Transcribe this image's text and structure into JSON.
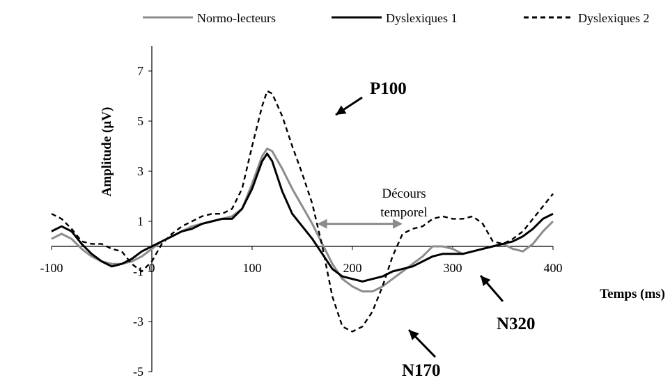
{
  "chart_data": {
    "type": "line",
    "title": "",
    "xlabel": "Temps (ms)",
    "ylabel": "Amplitude (µV)",
    "xlim": [
      -100,
      400
    ],
    "ylim": [
      -5,
      8
    ],
    "xticks": [
      -100,
      0,
      100,
      200,
      300,
      400
    ],
    "yticks": [
      -5,
      -3,
      -1,
      1,
      3,
      5,
      7
    ],
    "grid": false,
    "legend_position": "top",
    "series": [
      {
        "name": "Normo-lecteurs",
        "color": "#8c8c8c",
        "dash": "solid",
        "points": [
          [
            -100,
            0.3
          ],
          [
            -90,
            0.5
          ],
          [
            -80,
            0.3
          ],
          [
            -70,
            -0.1
          ],
          [
            -60,
            -0.4
          ],
          [
            -50,
            -0.6
          ],
          [
            -40,
            -0.7
          ],
          [
            -30,
            -0.7
          ],
          [
            -20,
            -0.6
          ],
          [
            -10,
            -0.4
          ],
          [
            0,
            -0.1
          ],
          [
            10,
            0.2
          ],
          [
            20,
            0.4
          ],
          [
            30,
            0.6
          ],
          [
            40,
            0.8
          ],
          [
            50,
            0.9
          ],
          [
            60,
            1.0
          ],
          [
            70,
            1.1
          ],
          [
            80,
            1.2
          ],
          [
            90,
            1.5
          ],
          [
            100,
            2.5
          ],
          [
            110,
            3.6
          ],
          [
            115,
            3.9
          ],
          [
            120,
            3.8
          ],
          [
            130,
            3.1
          ],
          [
            140,
            2.3
          ],
          [
            150,
            1.6
          ],
          [
            160,
            0.9
          ],
          [
            170,
            0.1
          ],
          [
            180,
            -0.7
          ],
          [
            190,
            -1.3
          ],
          [
            200,
            -1.6
          ],
          [
            210,
            -1.8
          ],
          [
            220,
            -1.8
          ],
          [
            230,
            -1.6
          ],
          [
            240,
            -1.3
          ],
          [
            250,
            -1.0
          ],
          [
            260,
            -0.7
          ],
          [
            270,
            -0.4
          ],
          [
            280,
            0.0
          ],
          [
            290,
            0.0
          ],
          [
            300,
            -0.1
          ],
          [
            310,
            -0.3
          ],
          [
            320,
            -0.2
          ],
          [
            330,
            -0.1
          ],
          [
            340,
            0.0
          ],
          [
            350,
            0.1
          ],
          [
            360,
            -0.1
          ],
          [
            370,
            -0.2
          ],
          [
            380,
            0.1
          ],
          [
            390,
            0.6
          ],
          [
            400,
            1.0
          ]
        ]
      },
      {
        "name": "Dyslexiques 1",
        "color": "#000000",
        "dash": "solid",
        "points": [
          [
            -100,
            0.6
          ],
          [
            -90,
            0.8
          ],
          [
            -80,
            0.6
          ],
          [
            -70,
            0.1
          ],
          [
            -60,
            -0.3
          ],
          [
            -50,
            -0.6
          ],
          [
            -40,
            -0.8
          ],
          [
            -30,
            -0.7
          ],
          [
            -20,
            -0.5
          ],
          [
            -10,
            -0.2
          ],
          [
            0,
            0.0
          ],
          [
            10,
            0.2
          ],
          [
            20,
            0.4
          ],
          [
            30,
            0.6
          ],
          [
            40,
            0.7
          ],
          [
            50,
            0.9
          ],
          [
            60,
            1.0
          ],
          [
            70,
            1.1
          ],
          [
            80,
            1.1
          ],
          [
            90,
            1.5
          ],
          [
            100,
            2.3
          ],
          [
            110,
            3.4
          ],
          [
            115,
            3.7
          ],
          [
            120,
            3.4
          ],
          [
            130,
            2.2
          ],
          [
            140,
            1.3
          ],
          [
            150,
            0.8
          ],
          [
            160,
            0.3
          ],
          [
            170,
            -0.3
          ],
          [
            180,
            -0.9
          ],
          [
            190,
            -1.2
          ],
          [
            200,
            -1.3
          ],
          [
            210,
            -1.4
          ],
          [
            220,
            -1.3
          ],
          [
            230,
            -1.2
          ],
          [
            240,
            -1.0
          ],
          [
            250,
            -0.9
          ],
          [
            260,
            -0.8
          ],
          [
            270,
            -0.6
          ],
          [
            280,
            -0.4
          ],
          [
            290,
            -0.3
          ],
          [
            300,
            -0.3
          ],
          [
            310,
            -0.3
          ],
          [
            320,
            -0.2
          ],
          [
            330,
            -0.1
          ],
          [
            340,
            0.0
          ],
          [
            350,
            0.1
          ],
          [
            360,
            0.2
          ],
          [
            370,
            0.4
          ],
          [
            380,
            0.7
          ],
          [
            390,
            1.1
          ],
          [
            400,
            1.3
          ]
        ]
      },
      {
        "name": "Dyslexiques 2",
        "color": "#000000",
        "dash": "dashed",
        "points": [
          [
            -100,
            1.3
          ],
          [
            -90,
            1.1
          ],
          [
            -80,
            0.7
          ],
          [
            -70,
            0.2
          ],
          [
            -60,
            0.1
          ],
          [
            -50,
            0.1
          ],
          [
            -40,
            -0.1
          ],
          [
            -30,
            -0.2
          ],
          [
            -20,
            -0.7
          ],
          [
            -10,
            -1.0
          ],
          [
            0,
            -0.6
          ],
          [
            10,
            0.1
          ],
          [
            20,
            0.5
          ],
          [
            30,
            0.8
          ],
          [
            40,
            1.0
          ],
          [
            50,
            1.2
          ],
          [
            60,
            1.3
          ],
          [
            70,
            1.3
          ],
          [
            80,
            1.5
          ],
          [
            90,
            2.3
          ],
          [
            100,
            4.0
          ],
          [
            110,
            5.6
          ],
          [
            115,
            6.2
          ],
          [
            120,
            6.1
          ],
          [
            130,
            5.2
          ],
          [
            140,
            4.0
          ],
          [
            150,
            2.9
          ],
          [
            160,
            1.7
          ],
          [
            170,
            0.0
          ],
          [
            180,
            -2.0
          ],
          [
            190,
            -3.2
          ],
          [
            200,
            -3.4
          ],
          [
            210,
            -3.2
          ],
          [
            220,
            -2.6
          ],
          [
            230,
            -1.6
          ],
          [
            240,
            -0.4
          ],
          [
            250,
            0.5
          ],
          [
            260,
            0.7
          ],
          [
            270,
            0.8
          ],
          [
            280,
            1.1
          ],
          [
            290,
            1.2
          ],
          [
            300,
            1.1
          ],
          [
            310,
            1.1
          ],
          [
            320,
            1.2
          ],
          [
            330,
            0.9
          ],
          [
            340,
            0.2
          ],
          [
            350,
            0.1
          ],
          [
            360,
            0.3
          ],
          [
            370,
            0.6
          ],
          [
            380,
            1.1
          ],
          [
            390,
            1.6
          ],
          [
            400,
            2.1
          ]
        ]
      }
    ],
    "annotations": [
      {
        "id": "p100",
        "text": "P100"
      },
      {
        "id": "n170",
        "text": "N170"
      },
      {
        "id": "n320",
        "text": "N320"
      },
      {
        "id": "decours_line1",
        "text": "Décours"
      },
      {
        "id": "decours_line2",
        "text": "temporel"
      }
    ],
    "range_arrow": {
      "x_start": 165,
      "x_end": 250,
      "y": 0.9,
      "color": "#8c8c8c"
    }
  }
}
